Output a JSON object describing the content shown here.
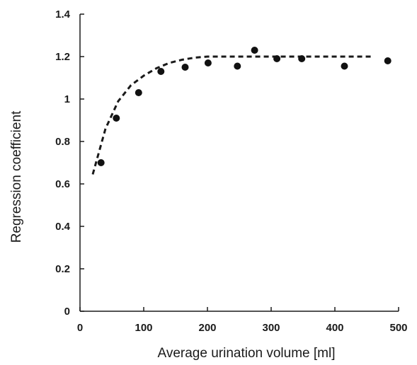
{
  "chart_data": {
    "type": "scatter",
    "title": "",
    "xlabel": "Average urination volume [ml]",
    "ylabel": "Regression coefficient",
    "xlim": [
      0,
      500
    ],
    "ylim": [
      0,
      1.4
    ],
    "x_ticks": [
      "0",
      "100",
      "200",
      "300",
      "400",
      "500"
    ],
    "y_ticks": [
      "0",
      "0.2",
      "0.4",
      "0.6",
      "0.8",
      "1",
      "1.2",
      "1.4"
    ],
    "grid": false,
    "legend": "none",
    "series": [
      {
        "type": "scatter",
        "x": [
          33,
          57,
          92,
          127,
          165,
          201,
          247,
          274,
          309,
          348,
          415,
          483
        ],
        "y": [
          0.7,
          0.91,
          1.03,
          1.13,
          1.15,
          1.17,
          1.155,
          1.23,
          1.19,
          1.19,
          1.155,
          1.18
        ]
      },
      {
        "type": "line",
        "style": "dashed",
        "x": [
          20,
          40,
          60,
          80,
          100,
          120,
          140,
          160,
          180,
          200,
          220,
          240,
          260,
          300,
          350,
          400,
          460
        ],
        "y": [
          0.645,
          0.86,
          0.99,
          1.065,
          1.11,
          1.145,
          1.17,
          1.185,
          1.195,
          1.2,
          1.2,
          1.2,
          1.2,
          1.2,
          1.2,
          1.2,
          1.2
        ]
      }
    ]
  }
}
